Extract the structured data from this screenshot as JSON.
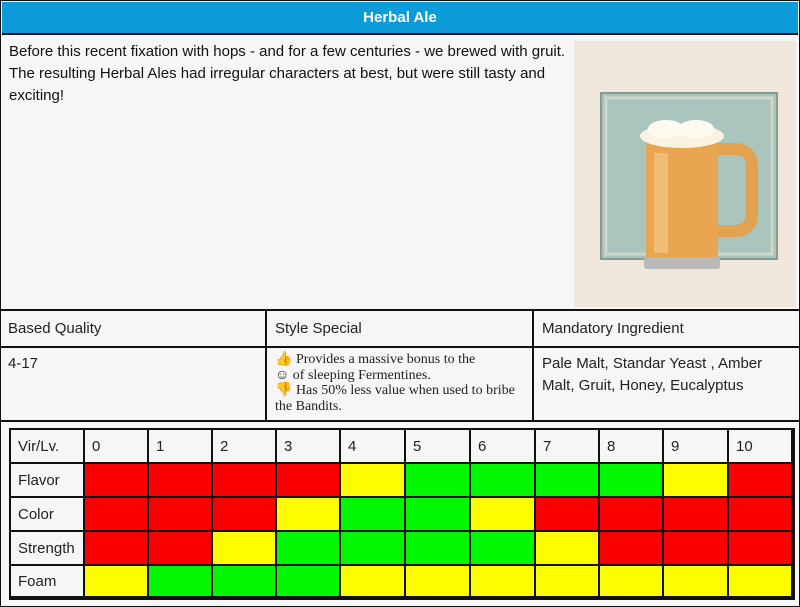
{
  "title": "Herbal Ale",
  "description": "Before this recent fixation with hops - and for a few centuries - we brewed with gruit. The resulting Herbal Ales had irregular characters at best, but were still tasty and exciting!",
  "info": {
    "headers": [
      "Based Quality",
      "Style Special",
      "Mandatory Ingredient"
    ],
    "quality": "4-17",
    "style_special": [
      {
        "icon": "thumbs-up-icon",
        "glyph": "👍",
        "text": "Provides a massive bonus to the"
      },
      {
        "icon": "smiley-icon",
        "glyph": "☺",
        "text": "of sleeping Fermentines."
      },
      {
        "icon": "thumbs-down-icon",
        "glyph": "👎",
        "text": "Has 50% less value when used to bribe the Bandits."
      }
    ],
    "ingredients": "Pale Malt, Standar Yeast , Amber Malt, Gruit, Honey, Eucalyptus"
  },
  "table": {
    "corner": "Vir/Lv.",
    "levels": [
      "0",
      "1",
      "2",
      "3",
      "4",
      "5",
      "6",
      "7",
      "8",
      "9",
      "10"
    ],
    "rows": [
      {
        "label": "Flavor",
        "cells": [
          "red",
          "red",
          "red",
          "red",
          "yellow",
          "green",
          "green",
          "green",
          "green",
          "yellow",
          "red"
        ]
      },
      {
        "label": "Color",
        "cells": [
          "red",
          "red",
          "red",
          "yellow",
          "green",
          "green",
          "yellow",
          "red",
          "red",
          "red",
          "red"
        ]
      },
      {
        "label": "Strength",
        "cells": [
          "red",
          "red",
          "yellow",
          "green",
          "green",
          "green",
          "green",
          "yellow",
          "red",
          "red",
          "red"
        ]
      },
      {
        "label": "Foam",
        "cells": [
          "yellow",
          "green",
          "green",
          "green",
          "yellow",
          "yellow",
          "yellow",
          "yellow",
          "yellow",
          "yellow",
          "yellow"
        ]
      }
    ],
    "colors": {
      "red": "#fb0000",
      "yellow": "#fdfd00",
      "green": "#00f700"
    }
  }
}
